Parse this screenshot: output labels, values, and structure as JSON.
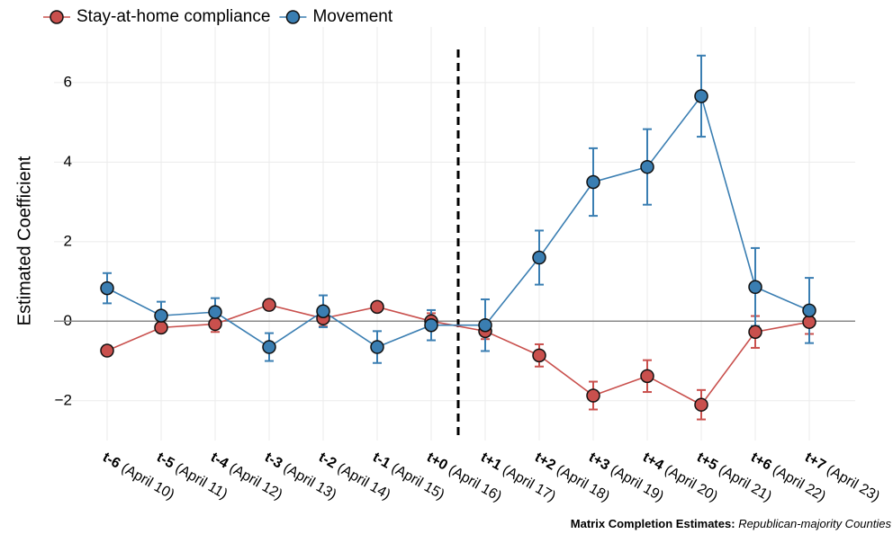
{
  "chart_data": {
    "type": "line",
    "ylabel": "Estimated Coefficient",
    "categories": [
      "t-6",
      "t-5",
      "t-4",
      "t-3",
      "t-2",
      "t-1",
      "t+0",
      "t+1",
      "t+2",
      "t+3",
      "t+4",
      "t+5",
      "t+6",
      "t+7"
    ],
    "category_dates": [
      "(April 10)",
      "(April 11)",
      "(April 12)",
      "(April 13)",
      "(April 14)",
      "(April 15)",
      "(April 16)",
      "(April 17)",
      "(April 18)",
      "(April 19)",
      "(April 20)",
      "(April 21)",
      "(April 22)",
      "(April 23)"
    ],
    "series": [
      {
        "name": "Stay-at-home compliance",
        "color": "#c9504d",
        "values": [
          -0.74,
          -0.16,
          -0.07,
          0.41,
          0.07,
          0.36,
          0.0,
          -0.25,
          -0.86,
          -1.87,
          -1.38,
          -2.1,
          -0.27,
          -0.02
        ],
        "errors": [
          0.12,
          0.1,
          0.2,
          0.12,
          0.2,
          0.12,
          0.2,
          0.2,
          0.28,
          0.35,
          0.4,
          0.37,
          0.4,
          0.3
        ]
      },
      {
        "name": "Movement",
        "color": "#3a7eb2",
        "values": [
          0.83,
          0.14,
          0.23,
          -0.65,
          0.25,
          -0.65,
          -0.1,
          -0.1,
          1.6,
          3.5,
          3.88,
          5.66,
          0.86,
          0.27
        ],
        "errors": [
          0.38,
          0.35,
          0.35,
          0.35,
          0.4,
          0.4,
          0.38,
          0.65,
          0.68,
          0.85,
          0.95,
          1.02,
          0.98,
          0.82
        ]
      }
    ],
    "ylim": [
      -3,
      7.4
    ],
    "yticks": [
      {
        "value": -2,
        "label": "−2"
      },
      0,
      2,
      4,
      6
    ],
    "hline": 0,
    "vline_x": 6.5,
    "grid": true,
    "legend": "top",
    "caption": {
      "source": "Matrix Completion Estimates:",
      "subject": "Republican-majority Counties"
    }
  }
}
